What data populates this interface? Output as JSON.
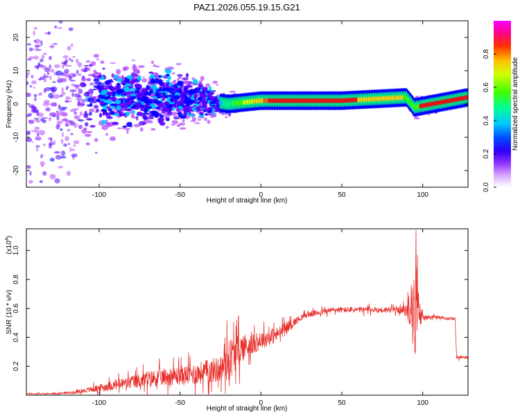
{
  "title": "PAZ1.2026.055.19.15.G21",
  "chart_data": [
    {
      "type": "heatmap",
      "name": "spectrogram",
      "xlabel": "Height of straight line (km)",
      "ylabel": "Frequency (Hz)",
      "xlim": [
        -145,
        128
      ],
      "ylim": [
        -25,
        25
      ],
      "x_ticks": [
        -100,
        -50,
        0,
        50,
        100
      ],
      "x_tick_labels": [
        "-100",
        "-50",
        "0",
        "50",
        "100"
      ],
      "y_ticks": [
        -20,
        -10,
        0,
        10,
        20
      ],
      "y_tick_labels": [
        "-20",
        "-10",
        "0",
        "10",
        "20"
      ],
      "colorbar": {
        "label": "Normalized spectral amplitude",
        "range": [
          0,
          1
        ],
        "ticks": [
          0.0,
          0.2,
          0.4,
          0.6,
          0.8
        ],
        "tick_labels": [
          "0.0",
          "0.2",
          "0.4",
          "0.6",
          "0.8"
        ],
        "colors": [
          "#ffffff",
          "#b44cff",
          "#5a00ff",
          "#0000ff",
          "#00c8ff",
          "#00ff80",
          "#40ff00",
          "#d0ff00",
          "#ffd000",
          "#ff6000",
          "#ff0000",
          "#ff00a0",
          "#ff00ff"
        ]
      },
      "ridge": {
        "description_points_x": [
          -130,
          -100,
          -50,
          -20,
          0,
          50,
          90,
          95,
          128
        ],
        "center_freq": [
          0,
          2,
          2,
          0,
          1,
          1,
          2,
          -1,
          2
        ],
        "spread_hz": [
          25,
          10,
          8,
          3,
          1,
          1,
          1,
          3,
          1
        ]
      }
    },
    {
      "type": "line",
      "name": "snr",
      "xlabel": "Height of straight line (km)",
      "ylabel": "SNR (10 * v/v)",
      "multiplier_label": "(x10",
      "multiplier_exp": "4",
      "multiplier_close": ")",
      "xlim": [
        -145,
        128
      ],
      "ylim": [
        0,
        1.15
      ],
      "x_ticks": [
        -100,
        -50,
        0,
        50,
        100
      ],
      "x_tick_labels": [
        "-100",
        "-50",
        "0",
        "50",
        "100"
      ],
      "y_ticks": [
        0.2,
        0.4,
        0.6,
        0.8,
        1.0
      ],
      "y_tick_labels": [
        "0.2",
        "0.4",
        "0.6",
        "0.8",
        "1.0"
      ],
      "color": "#e8302c",
      "series": [
        {
          "name": "SNR",
          "x": [
            -145,
            -130,
            -115,
            -105,
            -95,
            -85,
            -75,
            -65,
            -55,
            -45,
            -35,
            -25,
            -20,
            -15,
            -10,
            -5,
            0,
            5,
            10,
            15,
            20,
            25,
            30,
            35,
            40,
            45,
            50,
            55,
            60,
            65,
            70,
            75,
            80,
            85,
            90,
            93,
            95,
            96,
            97,
            98,
            100,
            105,
            110,
            115,
            120,
            121,
            122,
            128
          ],
          "mean": [
            0.01,
            0.01,
            0.02,
            0.04,
            0.06,
            0.08,
            0.1,
            0.12,
            0.13,
            0.14,
            0.16,
            0.18,
            0.25,
            0.3,
            0.34,
            0.35,
            0.38,
            0.4,
            0.42,
            0.46,
            0.5,
            0.54,
            0.56,
            0.57,
            0.58,
            0.59,
            0.59,
            0.59,
            0.59,
            0.59,
            0.59,
            0.59,
            0.59,
            0.59,
            0.58,
            0.6,
            0.55,
            0.6,
            0.7,
            0.56,
            0.54,
            0.54,
            0.54,
            0.53,
            0.53,
            0.26,
            0.26,
            0.26
          ],
          "noise": [
            0.005,
            0.005,
            0.01,
            0.02,
            0.03,
            0.04,
            0.05,
            0.06,
            0.06,
            0.07,
            0.08,
            0.09,
            0.15,
            0.12,
            0.09,
            0.07,
            0.06,
            0.06,
            0.05,
            0.04,
            0.03,
            0.02,
            0.02,
            0.02,
            0.02,
            0.02,
            0.02,
            0.02,
            0.02,
            0.02,
            0.02,
            0.02,
            0.02,
            0.02,
            0.04,
            0.15,
            0.3,
            0.35,
            0.3,
            0.1,
            0.02,
            0.01,
            0.01,
            0.01,
            0.01,
            0.01,
            0.01,
            0.01
          ]
        }
      ]
    }
  ]
}
